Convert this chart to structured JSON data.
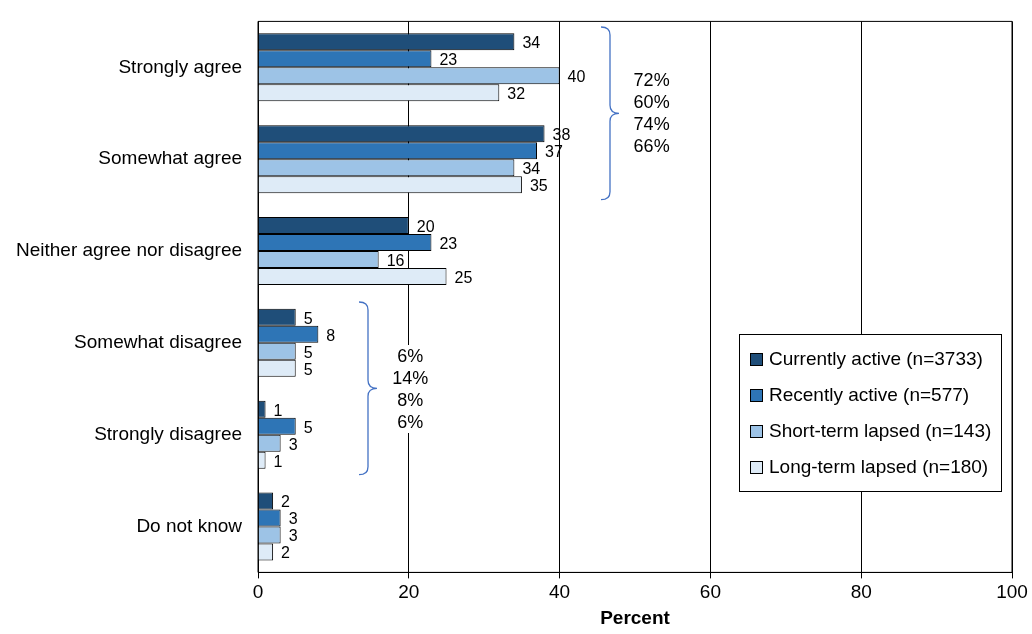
{
  "chart_data": {
    "type": "bar",
    "orientation": "horizontal",
    "xlabel": "Percent",
    "categories": [
      "Strongly agree",
      "Somewhat agree",
      "Neither agree nor disagree",
      "Somewhat disagree",
      "Strongly disagree",
      "Do not know"
    ],
    "series": [
      {
        "name": "Currently active (n=3733)",
        "color": "#1f4e79",
        "values": [
          34,
          38,
          20,
          5,
          1,
          2
        ]
      },
      {
        "name": "Recently active (n=577)",
        "color": "#2e75b6",
        "values": [
          23,
          37,
          23,
          8,
          5,
          3
        ]
      },
      {
        "name": "Short-term lapsed (n=143)",
        "color": "#9dc3e6",
        "values": [
          40,
          34,
          16,
          5,
          3,
          3
        ]
      },
      {
        "name": "Long-term lapsed (n=180)",
        "color": "#deebf7",
        "values": [
          32,
          35,
          25,
          5,
          1,
          2
        ]
      }
    ],
    "xlim": [
      0,
      100
    ],
    "xticks": [
      0,
      20,
      40,
      60,
      80,
      100
    ],
    "grid": "x",
    "legend": "bottom right",
    "data_labels": true,
    "annotations": [
      "72%\n60%\n74%\n66%",
      "6%\n14%\n8%\n6%"
    ]
  }
}
